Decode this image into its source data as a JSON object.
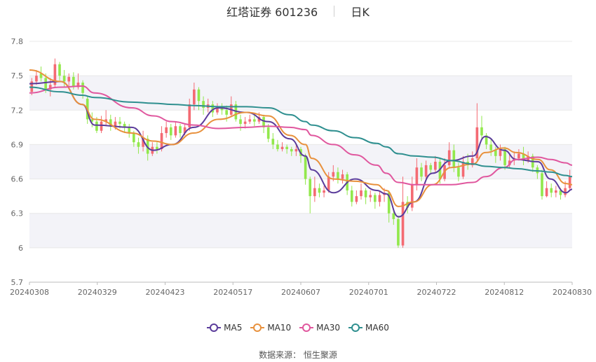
{
  "header": {
    "title": "红塔证券 601236",
    "period": "日K"
  },
  "source": {
    "label": "数据来源：",
    "value": "恒生聚源"
  },
  "colors": {
    "up": "#f46a73",
    "down": "#92e84c",
    "MA5": "#5b3c9b",
    "MA10": "#e8913d",
    "MA30": "#e0579e",
    "MA60": "#2e8f8f",
    "grid": "#e8e8e8",
    "band": "#f3f3f8"
  },
  "chart_data": {
    "type": "candlestick",
    "ylim": [
      5.7,
      7.8
    ],
    "yticks": [
      "7.8",
      "7.5",
      "7.2",
      "6.9",
      "6.6",
      "6.3",
      "6",
      "5.7"
    ],
    "xticks": [
      "20240308",
      "20240329",
      "20240423",
      "20240517",
      "20240607",
      "20240701",
      "20240722",
      "20240812",
      "20240830"
    ],
    "series": [
      {
        "name": "MA5",
        "points": [
          [
            "20240308",
            7.43
          ],
          [
            "20240318",
            7.45
          ],
          [
            "20240325",
            7.25
          ],
          [
            "20240329",
            7.07
          ],
          [
            "20240410",
            7.05
          ],
          [
            "20240417",
            6.85
          ],
          [
            "20240423",
            6.9
          ],
          [
            "20240430",
            7.05
          ],
          [
            "20240508",
            7.22
          ],
          [
            "20240517",
            7.18
          ],
          [
            "20240524",
            7.1
          ],
          [
            "20240531",
            6.95
          ],
          [
            "20240605",
            6.8
          ],
          [
            "20240607",
            6.68
          ],
          [
            "20240614",
            6.48
          ],
          [
            "20240621",
            6.6
          ],
          [
            "20240628",
            6.5
          ],
          [
            "20240701",
            6.47
          ],
          [
            "20240705",
            6.27
          ],
          [
            "20240710",
            6.4
          ],
          [
            "20240716",
            6.65
          ],
          [
            "20240722",
            6.76
          ],
          [
            "20240729",
            6.8
          ],
          [
            "20240802",
            6.97
          ],
          [
            "20240808",
            6.85
          ],
          [
            "20240812",
            6.77
          ],
          [
            "20240819",
            6.75
          ],
          [
            "20240823",
            6.6
          ],
          [
            "20240828",
            6.48
          ],
          [
            "20240830",
            6.51
          ]
        ]
      },
      {
        "name": "MA10",
        "points": [
          [
            "20240308",
            7.55
          ],
          [
            "20240318",
            7.45
          ],
          [
            "20240325",
            7.25
          ],
          [
            "20240329",
            7.12
          ],
          [
            "20240410",
            7.0
          ],
          [
            "20240417",
            6.93
          ],
          [
            "20240423",
            6.9
          ],
          [
            "20240430",
            7.0
          ],
          [
            "20240508",
            7.12
          ],
          [
            "20240517",
            7.18
          ],
          [
            "20240524",
            7.15
          ],
          [
            "20240531",
            6.98
          ],
          [
            "20240605",
            6.9
          ],
          [
            "20240607",
            6.78
          ],
          [
            "20240614",
            6.6
          ],
          [
            "20240621",
            6.58
          ],
          [
            "20240628",
            6.55
          ],
          [
            "20240701",
            6.5
          ],
          [
            "20240705",
            6.36
          ],
          [
            "20240710",
            6.4
          ],
          [
            "20240716",
            6.55
          ],
          [
            "20240722",
            6.7
          ],
          [
            "20240729",
            6.73
          ],
          [
            "20240802",
            6.83
          ],
          [
            "20240808",
            6.87
          ],
          [
            "20240812",
            6.83
          ],
          [
            "20240819",
            6.77
          ],
          [
            "20240823",
            6.68
          ],
          [
            "20240828",
            6.56
          ],
          [
            "20240830",
            6.55
          ]
        ]
      },
      {
        "name": "MA30",
        "points": [
          [
            "20240308",
            7.35
          ],
          [
            "20240318",
            7.4
          ],
          [
            "20240325",
            7.41
          ],
          [
            "20240329",
            7.35
          ],
          [
            "20240410",
            7.22
          ],
          [
            "20240417",
            7.15
          ],
          [
            "20240423",
            7.1
          ],
          [
            "20240430",
            7.07
          ],
          [
            "20240508",
            7.04
          ],
          [
            "20240517",
            7.05
          ],
          [
            "20240524",
            7.06
          ],
          [
            "20240531",
            7.05
          ],
          [
            "20240605",
            7.03
          ],
          [
            "20240607",
            6.98
          ],
          [
            "20240614",
            6.9
          ],
          [
            "20240621",
            6.81
          ],
          [
            "20240628",
            6.72
          ],
          [
            "20240701",
            6.65
          ],
          [
            "20240705",
            6.57
          ],
          [
            "20240710",
            6.55
          ],
          [
            "20240716",
            6.55
          ],
          [
            "20240722",
            6.55
          ],
          [
            "20240729",
            6.57
          ],
          [
            "20240802",
            6.62
          ],
          [
            "20240808",
            6.7
          ],
          [
            "20240812",
            6.77
          ],
          [
            "20240819",
            6.79
          ],
          [
            "20240823",
            6.77
          ],
          [
            "20240828",
            6.74
          ],
          [
            "20240830",
            6.72
          ]
        ]
      },
      {
        "name": "MA60",
        "points": [
          [
            "20240308",
            7.4
          ],
          [
            "20240318",
            7.36
          ],
          [
            "20240325",
            7.33
          ],
          [
            "20240329",
            7.31
          ],
          [
            "20240410",
            7.27
          ],
          [
            "20240417",
            7.26
          ],
          [
            "20240423",
            7.25
          ],
          [
            "20240430",
            7.24
          ],
          [
            "20240508",
            7.23
          ],
          [
            "20240517",
            7.23
          ],
          [
            "20240524",
            7.22
          ],
          [
            "20240531",
            7.16
          ],
          [
            "20240605",
            7.1
          ],
          [
            "20240607",
            7.07
          ],
          [
            "20240614",
            7.02
          ],
          [
            "20240621",
            6.96
          ],
          [
            "20240628",
            6.91
          ],
          [
            "20240701",
            6.88
          ],
          [
            "20240705",
            6.82
          ],
          [
            "20240710",
            6.8
          ],
          [
            "20240716",
            6.79
          ],
          [
            "20240722",
            6.76
          ],
          [
            "20240729",
            6.73
          ],
          [
            "20240802",
            6.71
          ],
          [
            "20240808",
            6.7
          ],
          [
            "20240812",
            6.69
          ],
          [
            "20240819",
            6.67
          ],
          [
            "20240823",
            6.66
          ],
          [
            "20240828",
            6.63
          ],
          [
            "20240830",
            6.62
          ]
        ]
      }
    ],
    "candles": [
      [
        7.36,
        7.45,
        7.48,
        7.33
      ],
      [
        7.45,
        7.5,
        7.55,
        7.42
      ],
      [
        7.52,
        7.48,
        7.58,
        7.45
      ],
      [
        7.48,
        7.38,
        7.52,
        7.35
      ],
      [
        7.38,
        7.42,
        7.48,
        7.32
      ],
      [
        7.42,
        7.6,
        7.65,
        7.4
      ],
      [
        7.6,
        7.5,
        7.62,
        7.46
      ],
      [
        7.5,
        7.45,
        7.55,
        7.4
      ],
      [
        7.45,
        7.49,
        7.52,
        7.4
      ],
      [
        7.49,
        7.4,
        7.53,
        7.38
      ],
      [
        7.4,
        7.44,
        7.52,
        7.38
      ],
      [
        7.44,
        7.35,
        7.46,
        7.3
      ],
      [
        7.3,
        7.12,
        7.32,
        7.08
      ],
      [
        7.12,
        7.1,
        7.18,
        7.05
      ],
      [
        7.1,
        7.02,
        7.14,
        7.0
      ],
      [
        7.02,
        7.1,
        7.15,
        7.0
      ],
      [
        7.1,
        7.12,
        7.2,
        7.06
      ],
      [
        7.12,
        7.06,
        7.16,
        7.02
      ],
      [
        7.06,
        7.1,
        7.14,
        7.03
      ],
      [
        7.1,
        7.08,
        7.14,
        7.04
      ],
      [
        7.08,
        7.05,
        7.1,
        7.0
      ],
      [
        7.05,
        7.0,
        7.08,
        6.96
      ],
      [
        7.0,
        6.92,
        7.02,
        6.88
      ],
      [
        6.92,
        6.88,
        6.96,
        6.82
      ],
      [
        6.88,
        6.95,
        7.02,
        6.84
      ],
      [
        6.95,
        6.82,
        6.98,
        6.76
      ],
      [
        6.82,
        6.88,
        6.92,
        6.8
      ],
      [
        6.88,
        6.86,
        6.92,
        6.82
      ],
      [
        6.86,
        7.0,
        7.06,
        6.84
      ],
      [
        7.0,
        7.05,
        7.1,
        6.96
      ],
      [
        7.05,
        6.98,
        7.08,
        6.94
      ],
      [
        6.98,
        7.06,
        7.1,
        6.96
      ],
      [
        7.06,
        7.0,
        7.08,
        6.96
      ],
      [
        7.0,
        7.05,
        7.08,
        6.98
      ],
      [
        7.05,
        7.25,
        7.3,
        7.02
      ],
      [
        7.25,
        7.38,
        7.44,
        7.2
      ],
      [
        7.38,
        7.28,
        7.4,
        7.2
      ],
      [
        7.28,
        7.22,
        7.32,
        7.16
      ],
      [
        7.22,
        7.25,
        7.3,
        7.18
      ],
      [
        7.25,
        7.18,
        7.28,
        7.14
      ],
      [
        7.18,
        7.22,
        7.26,
        7.16
      ],
      [
        7.22,
        7.2,
        7.26,
        7.16
      ],
      [
        7.2,
        7.16,
        7.24,
        7.1
      ],
      [
        7.16,
        7.25,
        7.32,
        7.14
      ],
      [
        7.25,
        7.12,
        7.28,
        7.1
      ],
      [
        7.12,
        7.08,
        7.16,
        7.02
      ],
      [
        7.08,
        7.1,
        7.14,
        7.04
      ],
      [
        7.1,
        7.12,
        7.16,
        7.08
      ],
      [
        7.12,
        7.1,
        7.16,
        7.06
      ],
      [
        7.1,
        7.14,
        7.18,
        7.08
      ],
      [
        7.14,
        7.05,
        7.16,
        7.0
      ],
      [
        7.05,
        6.95,
        7.08,
        6.92
      ],
      [
        6.95,
        6.9,
        7.0,
        6.86
      ],
      [
        6.9,
        6.86,
        6.94,
        6.84
      ],
      [
        6.86,
        6.88,
        6.92,
        6.84
      ],
      [
        6.88,
        6.86,
        6.9,
        6.82
      ],
      [
        6.86,
        6.84,
        6.88,
        6.8
      ],
      [
        6.84,
        6.86,
        6.9,
        6.8
      ],
      [
        6.86,
        6.8,
        6.88,
        6.74
      ],
      [
        6.8,
        6.6,
        6.82,
        6.55
      ],
      [
        6.6,
        6.45,
        6.62,
        6.3
      ],
      [
        6.45,
        6.52,
        6.62,
        6.4
      ],
      [
        6.52,
        6.48,
        6.56,
        6.44
      ],
      [
        6.48,
        6.5,
        6.54,
        6.44
      ],
      [
        6.5,
        6.62,
        6.66,
        6.48
      ],
      [
        6.62,
        6.66,
        6.72,
        6.58
      ],
      [
        6.66,
        6.6,
        6.7,
        6.56
      ],
      [
        6.6,
        6.64,
        6.68,
        6.56
      ],
      [
        6.64,
        6.5,
        6.66,
        6.46
      ],
      [
        6.5,
        6.4,
        6.54,
        6.36
      ],
      [
        6.4,
        6.45,
        6.5,
        6.38
      ],
      [
        6.45,
        6.5,
        6.56,
        6.42
      ],
      [
        6.5,
        6.44,
        6.52,
        6.38
      ],
      [
        6.44,
        6.46,
        6.5,
        6.4
      ],
      [
        6.46,
        6.4,
        6.48,
        6.34
      ],
      [
        6.4,
        6.46,
        6.5,
        6.36
      ],
      [
        6.46,
        6.48,
        6.52,
        6.4
      ],
      [
        6.48,
        6.3,
        6.5,
        6.22
      ],
      [
        6.3,
        6.25,
        6.34,
        6.2
      ],
      [
        6.25,
        6.02,
        6.28,
        6.0
      ],
      [
        6.02,
        6.4,
        6.62,
        6.0
      ],
      [
        6.4,
        6.35,
        6.45,
        6.3
      ],
      [
        6.35,
        6.55,
        6.62,
        6.32
      ],
      [
        6.55,
        6.7,
        6.78,
        6.5
      ],
      [
        6.7,
        6.62,
        6.74,
        6.58
      ],
      [
        6.62,
        6.72,
        6.76,
        6.6
      ],
      [
        6.72,
        6.68,
        6.74,
        6.64
      ],
      [
        6.68,
        6.75,
        6.8,
        6.66
      ],
      [
        6.75,
        6.6,
        6.78,
        6.56
      ],
      [
        6.6,
        6.72,
        6.78,
        6.58
      ],
      [
        6.72,
        6.85,
        6.92,
        6.7
      ],
      [
        6.85,
        6.7,
        6.9,
        6.66
      ],
      [
        6.7,
        6.62,
        6.74,
        6.58
      ],
      [
        6.62,
        6.75,
        6.8,
        6.6
      ],
      [
        6.75,
        6.72,
        6.82,
        6.68
      ],
      [
        6.72,
        6.78,
        6.84,
        6.7
      ],
      [
        6.78,
        7.05,
        7.26,
        6.76
      ],
      [
        7.05,
        6.98,
        7.15,
        6.95
      ],
      [
        6.98,
        6.9,
        7.0,
        6.86
      ],
      [
        6.9,
        6.85,
        6.95,
        6.8
      ],
      [
        6.85,
        6.8,
        6.88,
        6.74
      ],
      [
        6.8,
        6.86,
        6.9,
        6.76
      ],
      [
        6.86,
        6.72,
        6.88,
        6.68
      ],
      [
        6.72,
        6.76,
        6.82,
        6.7
      ],
      [
        6.76,
        6.78,
        6.84,
        6.72
      ],
      [
        6.78,
        6.82,
        6.86,
        6.76
      ],
      [
        6.82,
        6.76,
        6.88,
        6.72
      ],
      [
        6.76,
        6.8,
        6.84,
        6.74
      ],
      [
        6.8,
        6.7,
        6.82,
        6.66
      ],
      [
        6.7,
        6.65,
        6.72,
        6.6
      ],
      [
        6.65,
        6.45,
        6.68,
        6.42
      ],
      [
        6.45,
        6.52,
        6.58,
        6.44
      ],
      [
        6.52,
        6.48,
        6.56,
        6.44
      ],
      [
        6.48,
        6.5,
        6.54,
        6.44
      ],
      [
        6.5,
        6.46,
        6.52,
        6.42
      ],
      [
        6.46,
        6.52,
        6.58,
        6.44
      ],
      [
        6.52,
        6.62,
        6.68,
        6.5
      ]
    ]
  }
}
